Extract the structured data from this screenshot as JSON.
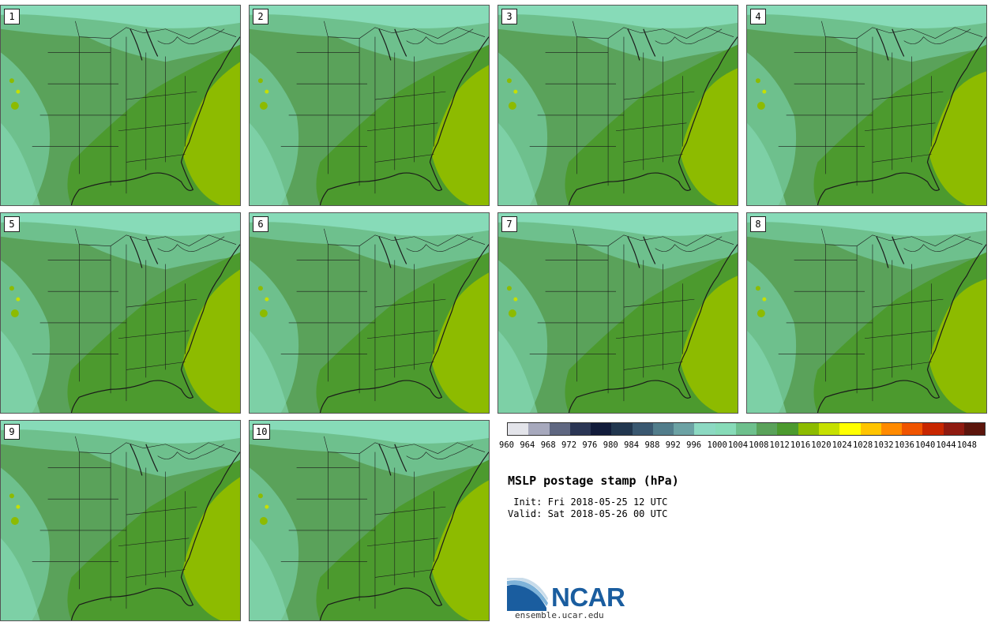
{
  "panels": [
    {
      "label": "1"
    },
    {
      "label": "2"
    },
    {
      "label": "3"
    },
    {
      "label": "4"
    },
    {
      "label": "5"
    },
    {
      "label": "6"
    },
    {
      "label": "7"
    },
    {
      "label": "8"
    },
    {
      "label": "9"
    },
    {
      "label": "10"
    }
  ],
  "colorbar": {
    "ticks": [
      "960",
      "964",
      "968",
      "972",
      "976",
      "980",
      "984",
      "988",
      "992",
      "996",
      "1000",
      "1004",
      "1008",
      "1012",
      "1016",
      "1020",
      "1024",
      "1028",
      "1032",
      "1036",
      "1040",
      "1044",
      "1048"
    ],
    "colors": [
      "#e3e4ea",
      "#a7a9bd",
      "#5f6781",
      "#2b3655",
      "#121c3b",
      "#22374f",
      "#3a5870",
      "#527d8b",
      "#6ca2a4",
      "#8cd9c2",
      "#87dbb8",
      "#6ec08d",
      "#5aa25a",
      "#4c9a2e",
      "#8dbb00",
      "#c6e000",
      "#ffff00",
      "#ffc400",
      "#ff8a00",
      "#f05400",
      "#c82600",
      "#8f1a10",
      "#5c150c"
    ]
  },
  "map_colors": {
    "p1000": "#87dbb8",
    "p1004": "#6ec08d",
    "p1008": "#5aa25a",
    "p1012": "#4c9a2e",
    "p1016": "#8dbb00",
    "p1020": "#c6e000",
    "borders": "#1a1a1a"
  },
  "title": "MSLP postage stamp (hPa)",
  "init_line": " Init: Fri 2018-05-25 12 UTC",
  "valid_line": "Valid: Sat 2018-05-26 00 UTC",
  "logo": {
    "name": "NCAR",
    "url": "ensemble.ucar.edu"
  }
}
